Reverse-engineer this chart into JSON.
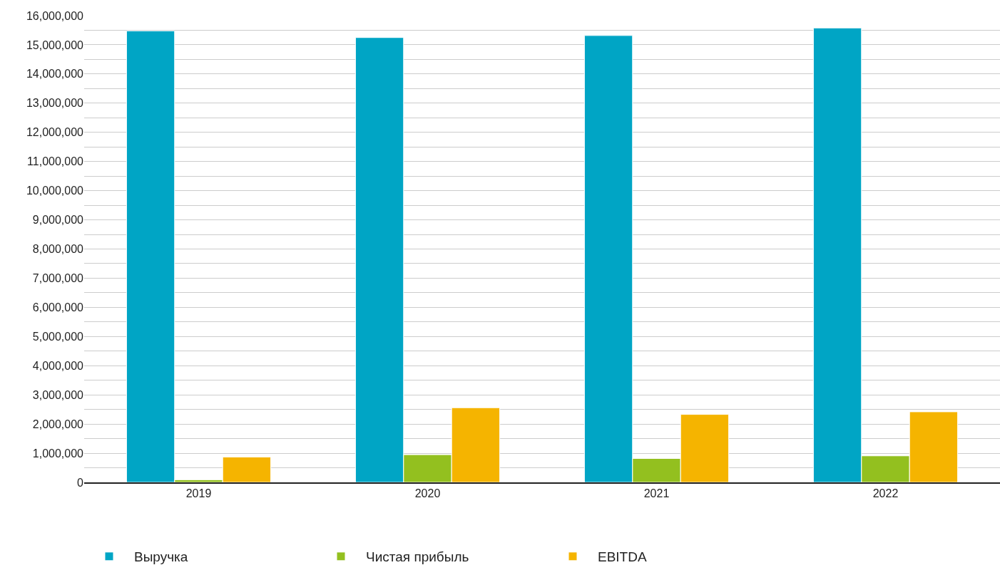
{
  "chart_data": {
    "type": "bar",
    "categories": [
      "2019",
      "2020",
      "2021",
      "2022"
    ],
    "series": [
      {
        "name": "Выручка",
        "color": "#00a5c5",
        "values": [
          15480000,
          15250000,
          15320000,
          15580000
        ]
      },
      {
        "name": "Чистая прибыль",
        "color": "#93c01f",
        "values": [
          90000,
          950000,
          820000,
          910000
        ]
      },
      {
        "name": "EBITDA",
        "color": "#f5b400",
        "values": [
          870000,
          2560000,
          2330000,
          2420000
        ]
      }
    ],
    "ylim": [
      0,
      16000000
    ],
    "yticks": [
      0,
      {
        "value": 500000,
        "label": null
      },
      {
        "value": 1000000,
        "label": "1,000,000"
      },
      {
        "value": 1500000,
        "label": null
      },
      {
        "value": 2000000,
        "label": "2,000,000"
      },
      {
        "value": 2500000,
        "label": null
      },
      {
        "value": 3000000,
        "label": "3,000,000"
      },
      {
        "value": 3500000,
        "label": null
      },
      {
        "value": 4000000,
        "label": "4,000,000"
      },
      {
        "value": 4500000,
        "label": null
      },
      {
        "value": 5000000,
        "label": "5,000,000"
      },
      {
        "value": 5500000,
        "label": null
      },
      {
        "value": 6000000,
        "label": "6,000,000"
      },
      {
        "value": 6500000,
        "label": null
      },
      {
        "value": 7000000,
        "label": "7,000,000"
      },
      {
        "value": 7500000,
        "label": null
      },
      {
        "value": 8000000,
        "label": "8,000,000"
      },
      {
        "value": 8500000,
        "label": null
      },
      {
        "value": 9000000,
        "label": "9,000,000"
      },
      {
        "value": 9500000,
        "label": null
      },
      {
        "value": 10000000,
        "label": "10,000,000"
      },
      {
        "value": 10500000,
        "label": null
      },
      {
        "value": 11000000,
        "label": "11,000,000"
      },
      {
        "value": 11500000,
        "label": null
      },
      {
        "value": 12000000,
        "label": "12,000,000"
      },
      {
        "value": 12500000,
        "label": null
      },
      {
        "value": 13000000,
        "label": "13,000,000"
      },
      {
        "value": 13500000,
        "label": null
      },
      {
        "value": 14000000,
        "label": "14,000,000"
      },
      {
        "value": 14500000,
        "label": null
      },
      {
        "value": 15000000,
        "label": "15,000,000"
      },
      {
        "value": 15500000,
        "label": null
      },
      {
        "value": 16000000,
        "label": "16,000,000"
      }
    ],
    "grid": "y",
    "legend": "bottom left"
  }
}
